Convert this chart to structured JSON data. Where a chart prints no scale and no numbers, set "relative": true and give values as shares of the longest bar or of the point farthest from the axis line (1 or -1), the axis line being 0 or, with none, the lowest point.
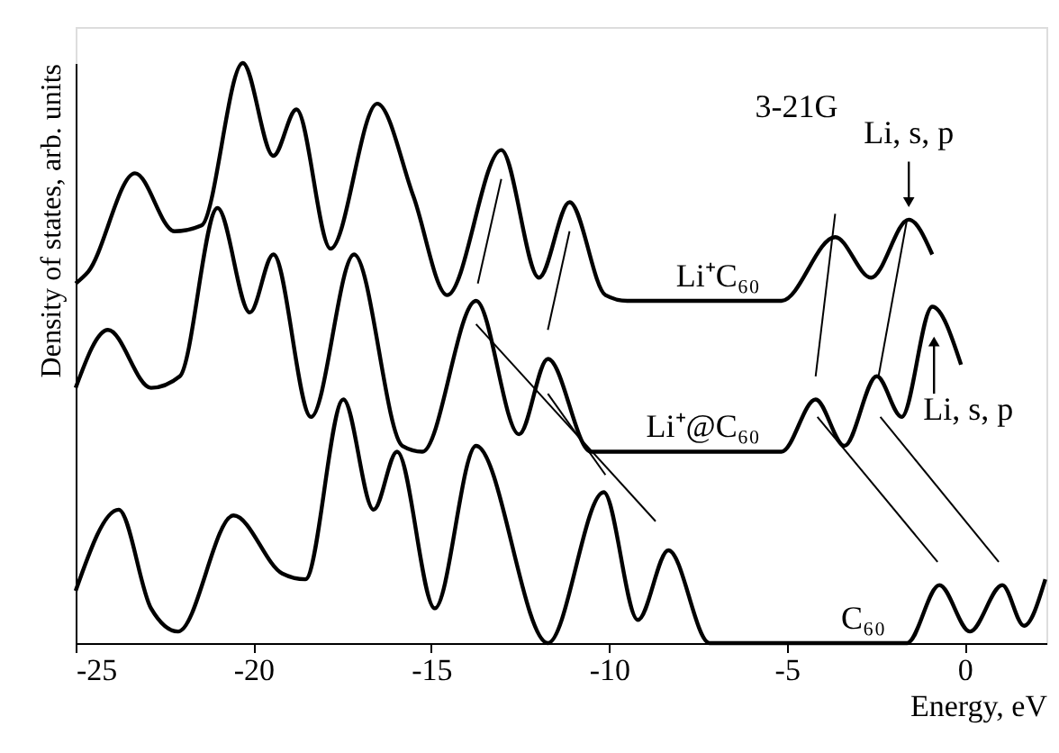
{
  "chart_data": {
    "type": "line",
    "relative": true,
    "xlabel": "Energy, eV",
    "ylabel": "Density of states, arb. units",
    "xlim": [
      -25,
      2.3
    ],
    "xticks": [
      -25,
      -20,
      -15,
      -10,
      -5,
      0
    ],
    "tick_labels": "x",
    "grid": false,
    "marker": "none",
    "line_style": "solid",
    "annotations": [
      "3-21G",
      {
        "text": "Li, s, p",
        "x": -1.57,
        "y": 0.73
      },
      {
        "text": "Li, s, p",
        "x": -0.86,
        "y": 0.58
      }
    ],
    "series": [
      {
        "name": "Li⁺C₆₀",
        "color": "#000000",
        "x": [
          -25.0,
          -24.65,
          -23.33,
          -22.22,
          -21.46,
          -20.3,
          -19.44,
          -18.79,
          -17.83,
          -16.52,
          -15.5,
          -14.55,
          -13.03,
          -11.97,
          -11.11,
          -10.1,
          -9.49,
          -5.15,
          -3.64,
          -2.63,
          -1.57,
          -0.91
        ],
        "values": [
          0.62,
          0.64,
          0.81,
          0.71,
          0.72,
          1.0,
          0.84,
          0.92,
          0.68,
          0.93,
          0.77,
          0.6,
          0.85,
          0.63,
          0.76,
          0.6,
          0.59,
          0.59,
          0.7,
          0.63,
          0.73,
          0.67
        ]
      },
      {
        "name": "Li⁺@C₆₀",
        "color": "#000000",
        "x": [
          -25.0,
          -24.09,
          -22.88,
          -22.07,
          -21.01,
          -20.1,
          -19.44,
          -18.38,
          -17.17,
          -15.81,
          -15.25,
          -13.74,
          -12.53,
          -11.72,
          -10.51,
          -5.15,
          -4.19,
          -3.38,
          -2.47,
          -1.77,
          -0.91,
          -0.1
        ],
        "values": [
          0.44,
          0.54,
          0.44,
          0.46,
          0.75,
          0.57,
          0.67,
          0.39,
          0.67,
          0.34,
          0.33,
          0.59,
          0.36,
          0.49,
          0.33,
          0.33,
          0.42,
          0.34,
          0.46,
          0.39,
          0.58,
          0.48
        ]
      },
      {
        "name": "C₆₀",
        "color": "#000000",
        "x": [
          -25.0,
          -23.79,
          -22.88,
          -22.12,
          -20.56,
          -19.19,
          -18.54,
          -17.47,
          -16.62,
          -15.96,
          -14.9,
          -13.74,
          -11.72,
          -10.15,
          -9.19,
          -8.33,
          -7.17,
          -1.62,
          -0.71,
          0.15,
          1.06,
          1.67,
          2.27
        ],
        "values": [
          0.09,
          0.23,
          0.06,
          0.02,
          0.22,
          0.12,
          0.11,
          0.42,
          0.23,
          0.33,
          0.06,
          0.34,
          0.0,
          0.26,
          0.04,
          0.16,
          0.0,
          0.0,
          0.1,
          0.02,
          0.1,
          0.03,
          0.11
        ]
      },
      {
        "color": "#000000",
        "x": [
          -13.03,
          -13.69
        ],
        "values": [
          0.8,
          0.62
        ]
      },
      {
        "color": "#000000",
        "x": [
          -11.11,
          -11.72
        ],
        "values": [
          0.71,
          0.54
        ]
      },
      {
        "color": "#000000",
        "x": [
          -13.74,
          -8.69
        ],
        "values": [
          0.55,
          0.21
        ]
      },
      {
        "color": "#000000",
        "x": [
          -11.72,
          -10.1
        ],
        "values": [
          0.43,
          0.29
        ]
      },
      {
        "color": "#000000",
        "x": [
          -3.64,
          -4.19
        ],
        "values": [
          0.74,
          0.46
        ]
      },
      {
        "color": "#000000",
        "x": [
          -1.62,
          -2.42
        ],
        "values": [
          0.73,
          0.46
        ]
      },
      {
        "color": "#000000",
        "x": [
          -4.14,
          -0.76
        ],
        "values": [
          0.39,
          0.14
        ]
      },
      {
        "color": "#000000",
        "x": [
          -2.37,
          0.96
        ],
        "values": [
          0.39,
          0.14
        ]
      }
    ]
  }
}
